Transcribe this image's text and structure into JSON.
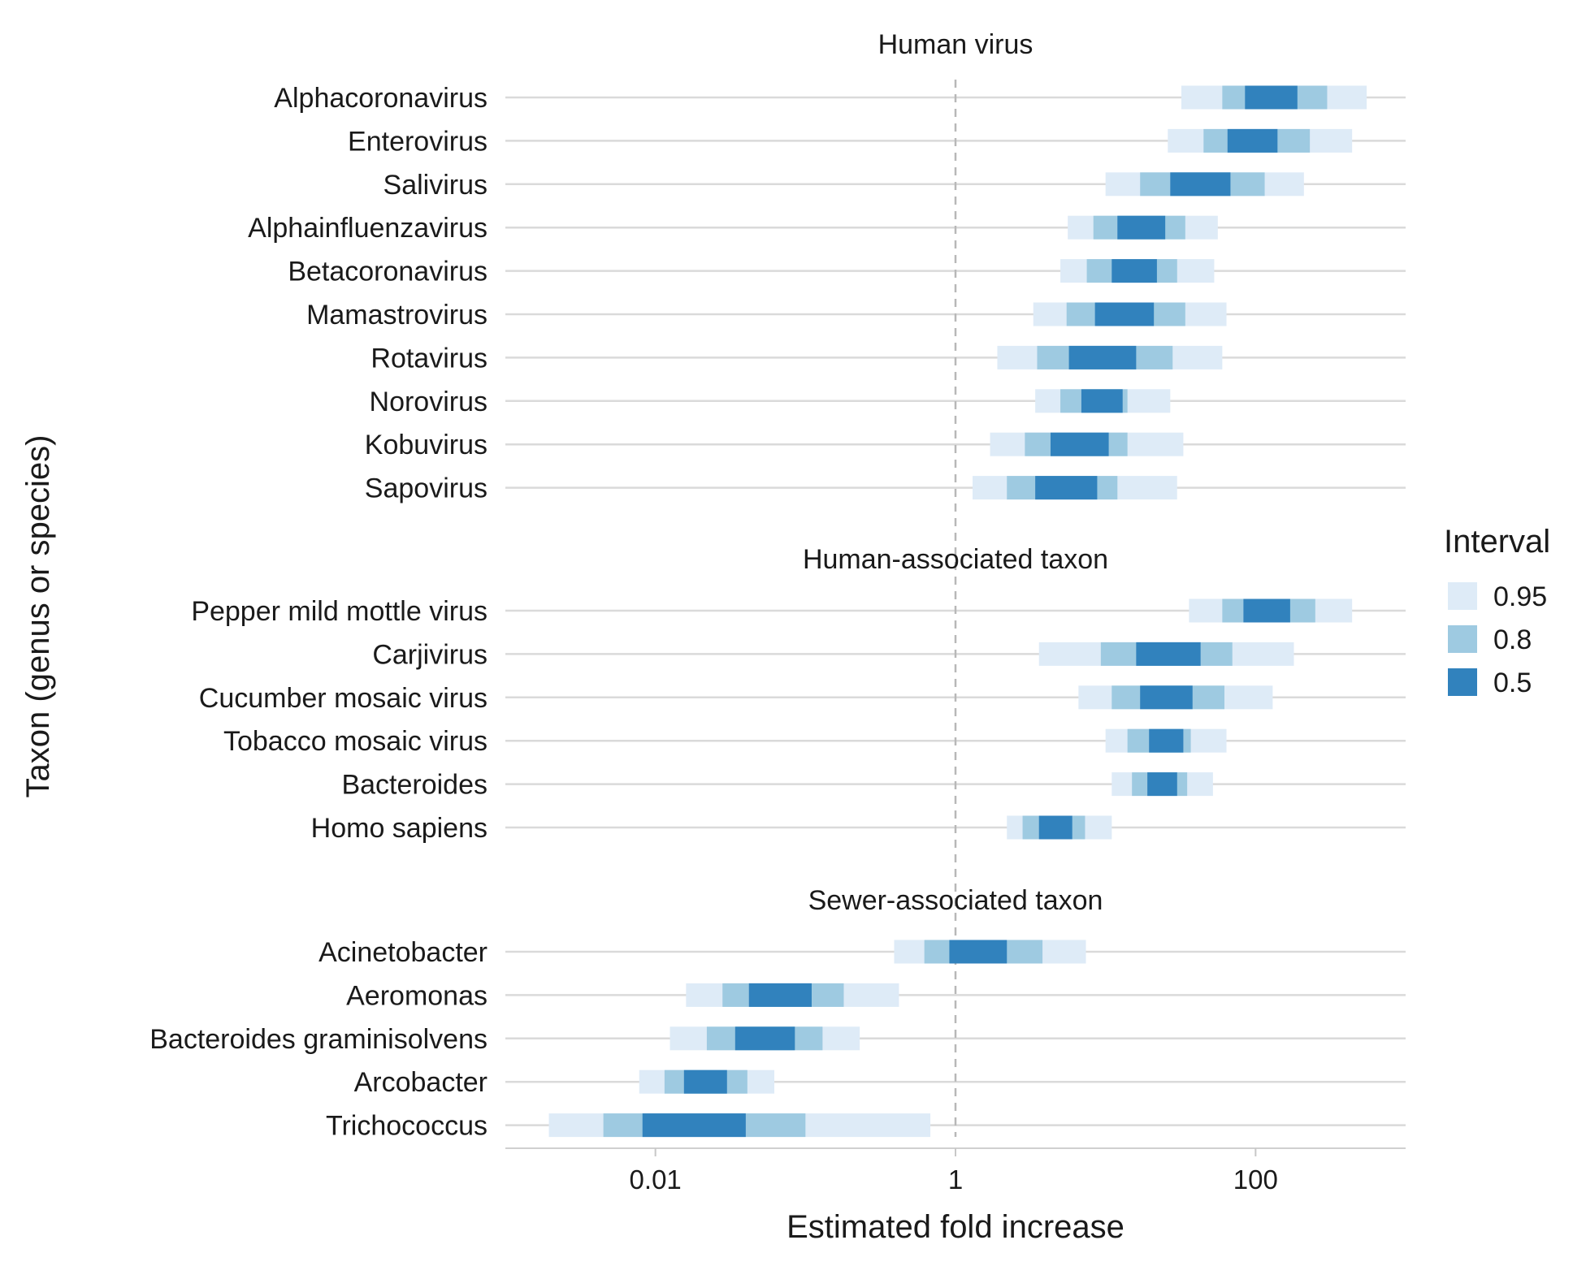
{
  "chart_data": {
    "type": "interval",
    "xlabel": "Estimated fold increase",
    "ylabel": "Taxon (genus or species)",
    "x_scale": "log10",
    "xlim": [
      0.001,
      1000
    ],
    "x_ticks": [
      {
        "value": 0.01,
        "label": "0.01"
      },
      {
        "value": 1,
        "label": "1"
      },
      {
        "value": 100,
        "label": "100"
      }
    ],
    "reference_line": 1,
    "legend": {
      "title": "Interval",
      "position": "right",
      "items": [
        {
          "label": "0.95",
          "color": "#deebf7"
        },
        {
          "label": "0.8",
          "color": "#9ecae1"
        },
        {
          "label": "0.5",
          "color": "#3182bd"
        }
      ]
    },
    "panels": [
      {
        "title": "Human virus",
        "rows": [
          {
            "taxon": "Alphacoronavirus",
            "ci95": [
              32,
              550
            ],
            "ci80": [
              60,
              300
            ],
            "ci50": [
              85,
              190
            ]
          },
          {
            "taxon": "Enterovirus",
            "ci95": [
              26,
              440
            ],
            "ci80": [
              45,
              230
            ],
            "ci50": [
              65,
              140
            ]
          },
          {
            "taxon": "Salivirus",
            "ci95": [
              10,
              210
            ],
            "ci80": [
              17,
              115
            ],
            "ci50": [
              27,
              68
            ]
          },
          {
            "taxon": "Alphainfluenzavirus",
            "ci95": [
              5.6,
              56
            ],
            "ci80": [
              8.3,
              34
            ],
            "ci50": [
              12,
              25
            ]
          },
          {
            "taxon": "Betacoronavirus",
            "ci95": [
              5.0,
              53
            ],
            "ci80": [
              7.5,
              30
            ],
            "ci50": [
              11,
              22
            ]
          },
          {
            "taxon": "Mamastrovirus",
            "ci95": [
              3.3,
              64
            ],
            "ci80": [
              5.5,
              34
            ],
            "ci50": [
              8.5,
              21
            ]
          },
          {
            "taxon": "Rotavirus",
            "ci95": [
              1.9,
              60
            ],
            "ci80": [
              3.5,
              28
            ],
            "ci50": [
              5.7,
              16
            ]
          },
          {
            "taxon": "Norovirus",
            "ci95": [
              3.4,
              27
            ],
            "ci80": [
              5.0,
              14
            ],
            "ci50": [
              6.9,
              13
            ]
          },
          {
            "taxon": "Kobuvirus",
            "ci95": [
              1.7,
              33
            ],
            "ci80": [
              2.9,
              14
            ],
            "ci50": [
              4.3,
              10.5
            ]
          },
          {
            "taxon": "Sapovirus",
            "ci95": [
              1.3,
              30
            ],
            "ci80": [
              2.2,
              12
            ],
            "ci50": [
              3.4,
              8.8
            ]
          }
        ]
      },
      {
        "title": "Human-associated taxon",
        "rows": [
          {
            "taxon": "Pepper mild mottle virus",
            "ci95": [
              36,
              440
            ],
            "ci80": [
              60,
              250
            ],
            "ci50": [
              83,
              170
            ]
          },
          {
            "taxon": "Carjivirus",
            "ci95": [
              3.6,
              180
            ],
            "ci80": [
              9.3,
              70
            ],
            "ci50": [
              16,
              43
            ]
          },
          {
            "taxon": "Cucumber mosaic virus",
            "ci95": [
              6.6,
              130
            ],
            "ci80": [
              11,
              62
            ],
            "ci50": [
              17,
              38
            ]
          },
          {
            "taxon": "Tobacco mosaic virus",
            "ci95": [
              10,
              64
            ],
            "ci80": [
              14,
              37
            ],
            "ci50": [
              19.5,
              33
            ]
          },
          {
            "taxon": "Bacteroides",
            "ci95": [
              11,
              52
            ],
            "ci80": [
              15,
              35
            ],
            "ci50": [
              19,
              30
            ]
          },
          {
            "taxon": "Homo sapiens",
            "ci95": [
              2.2,
              11
            ],
            "ci80": [
              2.8,
              7.3
            ],
            "ci50": [
              3.6,
              6.0
            ]
          }
        ]
      },
      {
        "title": "Sewer-associated taxon",
        "rows": [
          {
            "taxon": "Acinetobacter",
            "ci95": [
              0.39,
              7.4
            ],
            "ci80": [
              0.62,
              3.8
            ],
            "ci50": [
              0.91,
              2.2
            ]
          },
          {
            "taxon": "Aeromonas",
            "ci95": [
              0.016,
              0.42
            ],
            "ci80": [
              0.028,
              0.18
            ],
            "ci50": [
              0.042,
              0.11
            ]
          },
          {
            "taxon": "Bacteroides graminisolvens",
            "ci95": [
              0.0125,
              0.23
            ],
            "ci80": [
              0.022,
              0.13
            ],
            "ci50": [
              0.034,
              0.085
            ]
          },
          {
            "taxon": "Arcobacter",
            "ci95": [
              0.0078,
              0.062
            ],
            "ci80": [
              0.0115,
              0.041
            ],
            "ci50": [
              0.0155,
              0.03
            ]
          },
          {
            "taxon": "Trichococcus",
            "ci95": [
              0.00195,
              0.68
            ],
            "ci80": [
              0.0045,
              0.1
            ],
            "ci50": [
              0.0082,
              0.04
            ]
          }
        ]
      }
    ]
  }
}
